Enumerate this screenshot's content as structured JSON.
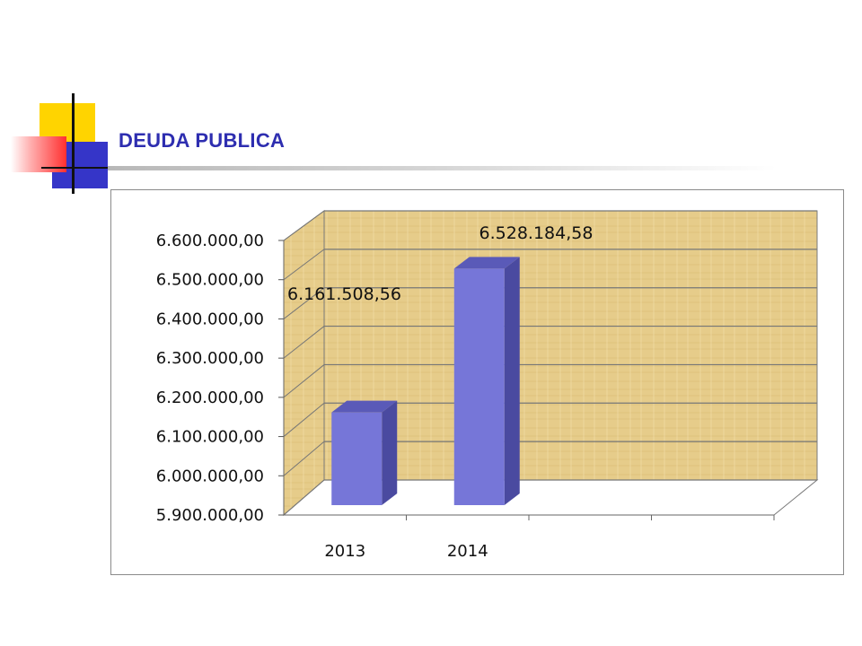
{
  "header": {
    "title": "DEUDA PUBLICA"
  },
  "colors": {
    "title": "#2e2eb0",
    "bar_front": "#7676d8",
    "bar_side": "#4a4aa0",
    "bar_top": "#5a5ab8",
    "wall": "#e6cc8a",
    "accent_yellow": "#ffd400",
    "accent_blue": "#3535c8",
    "accent_red": "#ff3030"
  },
  "chart_data": {
    "type": "bar",
    "title": "",
    "xlabel": "",
    "ylabel": "",
    "categories": [
      "2013",
      "2014"
    ],
    "values": [
      6161508.56,
      6528184.58
    ],
    "value_labels": [
      "6.161.508,56",
      "6.528.184,58"
    ],
    "ylim": [
      5900000,
      6600000
    ],
    "y_ticks": [
      5900000,
      6000000,
      6100000,
      6200000,
      6300000,
      6400000,
      6500000,
      6600000
    ],
    "y_tick_labels": [
      "5.900.000,00",
      "6.000.000,00",
      "6.100.000,00",
      "6.200.000,00",
      "6.300.000,00",
      "6.400.000,00",
      "6.500.000,00",
      "6.600.000,00"
    ],
    "grid": true,
    "style": "3d",
    "legend": "none"
  }
}
